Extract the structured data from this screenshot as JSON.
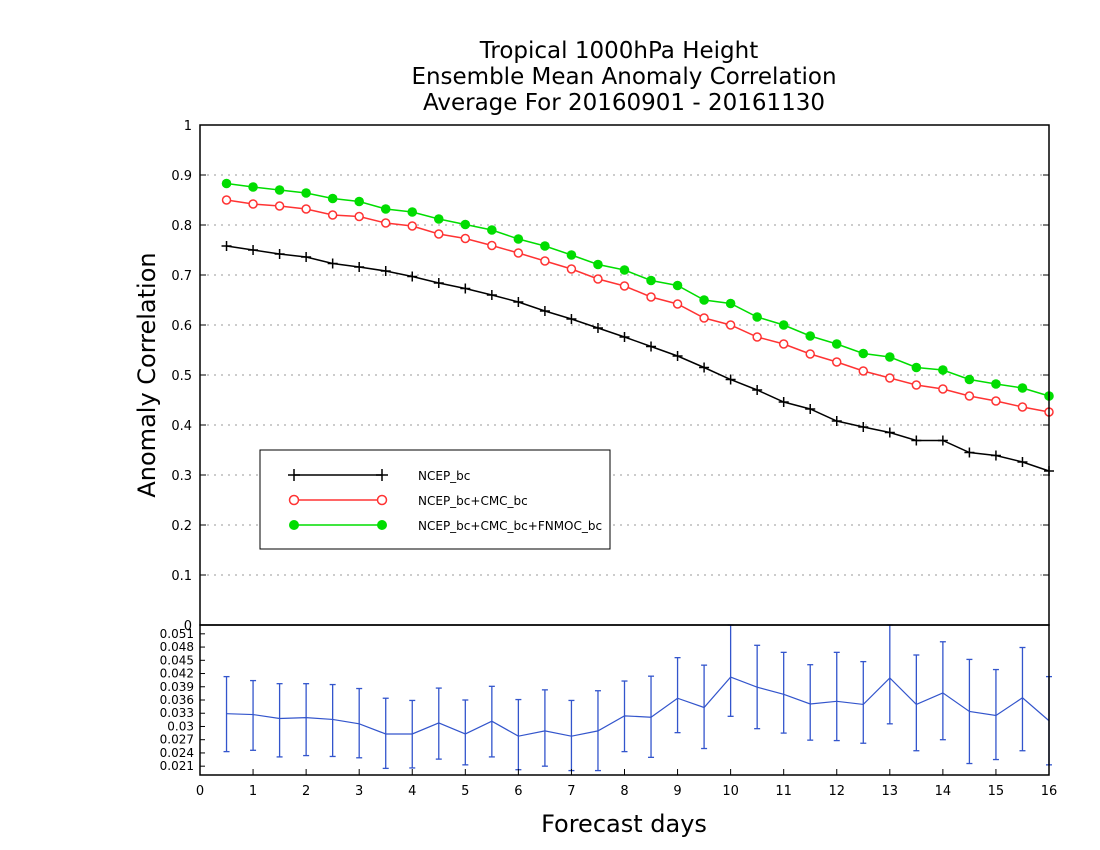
{
  "chart_data": [
    {
      "type": "line",
      "title": [
        "Tropical 1000hPa Height",
        "Ensemble Mean Anomaly Correlation",
        "Average For 20160901 - 20161130"
      ],
      "xlabel": "Forecast days",
      "ylabel": "Anomaly Correlation",
      "xlim": [
        0,
        16
      ],
      "ylim": [
        0,
        1
      ],
      "x_ticks": [
        "0",
        "1",
        "2",
        "3",
        "4",
        "5",
        "6",
        "7",
        "8",
        "9",
        "10",
        "11",
        "12",
        "13",
        "14",
        "15",
        "16"
      ],
      "y_ticks": [
        "0",
        "0.1",
        "0.2",
        "0.3",
        "0.4",
        "0.5",
        "0.6",
        "0.7",
        "0.8",
        "0.9",
        "1"
      ],
      "grid": true,
      "legend_position": "lower-left",
      "x": [
        0.5,
        1,
        1.5,
        2,
        2.5,
        3,
        3.5,
        4,
        4.5,
        5,
        5.5,
        6,
        6.5,
        7,
        7.5,
        8,
        8.5,
        9,
        9.5,
        10,
        10.5,
        11,
        11.5,
        12,
        12.5,
        13,
        13.5,
        14,
        14.5,
        15,
        15.5,
        16
      ],
      "series": [
        {
          "name": "NCEP_bc",
          "color": "#000000",
          "marker": "plus",
          "values": [
            0.758,
            0.75,
            0.742,
            0.736,
            0.723,
            0.716,
            0.708,
            0.697,
            0.684,
            0.673,
            0.66,
            0.646,
            0.628,
            0.612,
            0.594,
            0.576,
            0.557,
            0.538,
            0.515,
            0.491,
            0.47,
            0.446,
            0.432,
            0.408,
            0.396,
            0.385,
            0.369,
            0.369,
            0.345,
            0.339,
            0.326,
            0.308
          ]
        },
        {
          "name": "NCEP_bc+CMC_bc",
          "color": "#ff3333",
          "marker": "open-circle",
          "values": [
            0.85,
            0.842,
            0.838,
            0.832,
            0.82,
            0.817,
            0.804,
            0.798,
            0.782,
            0.773,
            0.759,
            0.744,
            0.728,
            0.712,
            0.692,
            0.678,
            0.656,
            0.642,
            0.614,
            0.6,
            0.576,
            0.562,
            0.542,
            0.526,
            0.508,
            0.494,
            0.48,
            0.472,
            0.458,
            0.448,
            0.436,
            0.426
          ]
        },
        {
          "name": "NCEP_bc+CMC_bc+FNMOC_bc",
          "color": "#00dd00",
          "marker": "filled-circle",
          "values": [
            0.883,
            0.876,
            0.87,
            0.864,
            0.853,
            0.847,
            0.832,
            0.826,
            0.812,
            0.801,
            0.79,
            0.772,
            0.758,
            0.74,
            0.721,
            0.71,
            0.689,
            0.679,
            0.65,
            0.643,
            0.616,
            0.6,
            0.578,
            0.562,
            0.543,
            0.536,
            0.515,
            0.51,
            0.491,
            0.482,
            0.474,
            0.458
          ]
        }
      ]
    },
    {
      "type": "line",
      "subtype": "errorbar",
      "xlim": [
        0,
        16
      ],
      "ylim": [
        0.019,
        0.053
      ],
      "y_ticks": [
        "0.021",
        "0.024",
        "0.027",
        "0.03",
        "0.033",
        "0.036",
        "0.039",
        "0.042",
        "0.045",
        "0.048",
        "0.051"
      ],
      "color": "#3355cc",
      "x": [
        0.5,
        1,
        1.5,
        2,
        2.5,
        3,
        3.5,
        4,
        4.5,
        5,
        5.5,
        6,
        6.5,
        7,
        7.5,
        8,
        8.5,
        9,
        9.5,
        10,
        10.5,
        11,
        11.5,
        12,
        12.5,
        13,
        13.5,
        14,
        14.5,
        15,
        15.5,
        16
      ],
      "values": [
        0.0329,
        0.0327,
        0.0318,
        0.032,
        0.0316,
        0.0306,
        0.0283,
        0.0283,
        0.0308,
        0.0283,
        0.0312,
        0.0278,
        0.029,
        0.0278,
        0.029,
        0.0324,
        0.0321,
        0.0364,
        0.0343,
        0.0412,
        0.0389,
        0.0373,
        0.0351,
        0.0357,
        0.035,
        0.041,
        0.035,
        0.0376,
        0.0334,
        0.0325,
        0.0365,
        0.0313
      ],
      "upper": [
        0.0413,
        0.0404,
        0.0397,
        0.0397,
        0.0395,
        0.0386,
        0.0364,
        0.0359,
        0.0387,
        0.036,
        0.0391,
        0.0361,
        0.0383,
        0.0359,
        0.0381,
        0.0403,
        0.0414,
        0.0456,
        0.0439,
        0.0531,
        0.0484,
        0.0468,
        0.044,
        0.0468,
        0.0447,
        0.0535,
        0.0462,
        0.0492,
        0.0452,
        0.0429,
        0.0479,
        0.0413
      ],
      "lower": [
        0.0243,
        0.0246,
        0.0231,
        0.0234,
        0.0232,
        0.0229,
        0.0205,
        0.0206,
        0.0226,
        0.0213,
        0.0231,
        0.0202,
        0.021,
        0.02,
        0.02,
        0.0243,
        0.023,
        0.0286,
        0.025,
        0.0323,
        0.0295,
        0.0285,
        0.0269,
        0.0268,
        0.0262,
        0.0306,
        0.0245,
        0.027,
        0.0216,
        0.0225,
        0.0245,
        0.0213
      ]
    }
  ]
}
